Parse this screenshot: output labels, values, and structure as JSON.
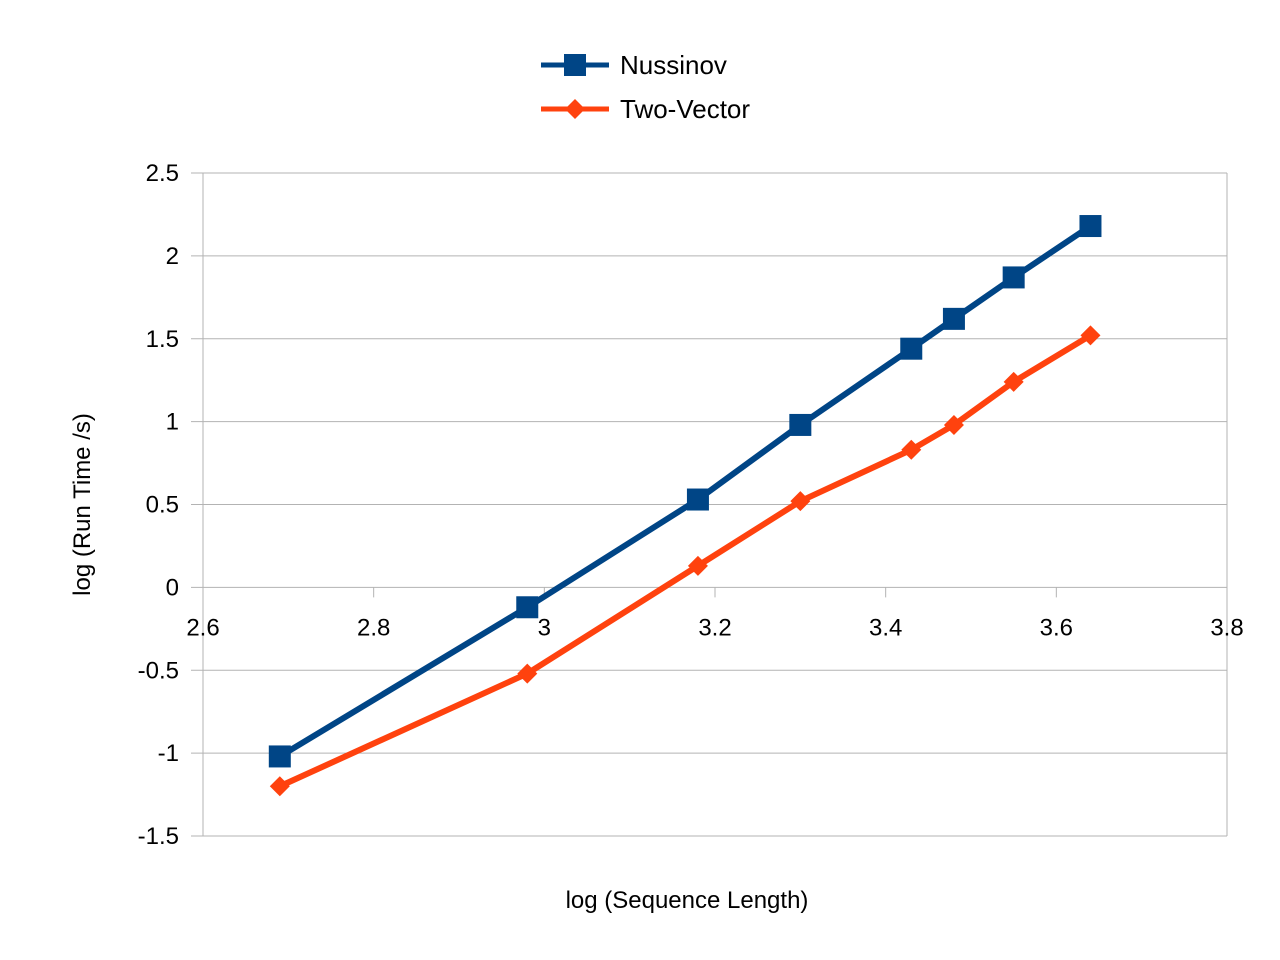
{
  "chart_data": {
    "type": "line",
    "title": "",
    "xlabel": "log (Sequence Length)",
    "ylabel": "log (Run Time /s)",
    "xlim": [
      2.6,
      3.8
    ],
    "ylim": [
      -1.5,
      2.5
    ],
    "x_ticks": [
      "2.6",
      "2.8",
      "3",
      "3.2",
      "3.4",
      "3.6",
      "3.8"
    ],
    "y_ticks": [
      "-1.5",
      "-1",
      "-0.5",
      "0",
      "0.5",
      "1",
      "1.5",
      "2",
      "2.5"
    ],
    "grid": "horizontal",
    "legend_position": "top-center",
    "series": [
      {
        "name": "Nussinov",
        "color": "#004586",
        "marker": "square",
        "points": [
          {
            "x": 2.69,
            "y": -1.02
          },
          {
            "x": 2.98,
            "y": -0.12
          },
          {
            "x": 3.18,
            "y": 0.53
          },
          {
            "x": 3.3,
            "y": 0.98
          },
          {
            "x": 3.43,
            "y": 1.44
          },
          {
            "x": 3.48,
            "y": 1.62
          },
          {
            "x": 3.55,
            "y": 1.87
          },
          {
            "x": 3.64,
            "y": 2.18
          }
        ]
      },
      {
        "name": "Two-Vector",
        "color": "#ff420e",
        "marker": "diamond",
        "points": [
          {
            "x": 2.69,
            "y": -1.2
          },
          {
            "x": 2.98,
            "y": -0.52
          },
          {
            "x": 3.18,
            "y": 0.13
          },
          {
            "x": 3.3,
            "y": 0.52
          },
          {
            "x": 3.43,
            "y": 0.83
          },
          {
            "x": 3.48,
            "y": 0.98
          },
          {
            "x": 3.55,
            "y": 1.24
          },
          {
            "x": 3.64,
            "y": 1.52
          }
        ]
      }
    ]
  }
}
